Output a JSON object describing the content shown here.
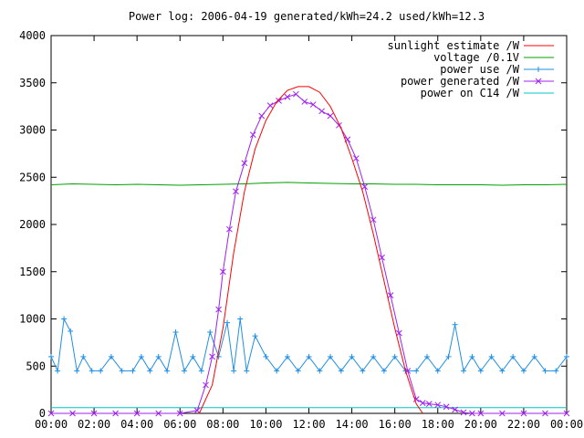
{
  "chart_data": {
    "type": "line",
    "title": "Power log: 2006-04-19 generated/kWh=24.2 used/kWh=12.3",
    "xlabel": "",
    "ylabel": "",
    "xlim": [
      0,
      24
    ],
    "ylim": [
      0,
      4000
    ],
    "x_ticks": [
      "00:00",
      "02:00",
      "04:00",
      "06:00",
      "08:00",
      "10:00",
      "12:00",
      "14:00",
      "16:00",
      "18:00",
      "20:00",
      "22:00",
      "00:00"
    ],
    "y_ticks": [
      "0",
      "500",
      "1000",
      "1500",
      "2000",
      "2500",
      "3000",
      "3500",
      "4000"
    ],
    "grid": false,
    "legend_position": "top-right",
    "series": [
      {
        "name": "sunlight estimate /W",
        "color": "#ff0000",
        "marker": "none",
        "x": [
          6.9,
          7.5,
          8,
          8.5,
          9,
          9.5,
          10,
          10.5,
          11,
          11.5,
          12,
          12.5,
          13,
          13.5,
          14,
          14.5,
          15,
          15.5,
          16,
          16.5,
          17,
          17.3
        ],
        "y": [
          0,
          300,
          900,
          1700,
          2350,
          2800,
          3100,
          3300,
          3420,
          3460,
          3460,
          3400,
          3250,
          3020,
          2700,
          2350,
          1900,
          1400,
          900,
          450,
          100,
          0
        ]
      },
      {
        "name": "voltage /0.1V",
        "color": "#00a000",
        "marker": "none",
        "x": [
          0,
          1,
          2,
          3,
          4,
          5,
          6,
          7,
          8,
          9,
          10,
          11,
          12,
          13,
          14,
          15,
          16,
          17,
          18,
          19,
          20,
          21,
          22,
          23,
          24
        ],
        "y": [
          2420,
          2430,
          2425,
          2420,
          2425,
          2420,
          2415,
          2420,
          2425,
          2430,
          2440,
          2445,
          2440,
          2435,
          2430,
          2430,
          2425,
          2425,
          2420,
          2420,
          2420,
          2415,
          2420,
          2420,
          2425
        ]
      },
      {
        "name": "power use /W",
        "color": "#1e8fe6",
        "marker": "plus",
        "x": [
          0,
          0.3,
          0.6,
          0.9,
          1.2,
          1.5,
          1.9,
          2.3,
          2.8,
          3.3,
          3.8,
          4.2,
          4.6,
          5.0,
          5.4,
          5.8,
          6.2,
          6.6,
          7.0,
          7.4,
          7.8,
          8.2,
          8.5,
          8.8,
          9.1,
          9.5,
          10.0,
          10.5,
          11.0,
          11.5,
          12.0,
          12.5,
          13.0,
          13.5,
          14.0,
          14.5,
          15.0,
          15.5,
          16.0,
          16.5,
          17.0,
          17.5,
          18.0,
          18.5,
          18.8,
          19.2,
          19.6,
          20.0,
          20.5,
          21.0,
          21.5,
          22.0,
          22.5,
          23.0,
          23.5,
          24.0
        ],
        "y": [
          600,
          450,
          1000,
          870,
          450,
          600,
          450,
          450,
          600,
          450,
          450,
          600,
          450,
          600,
          450,
          860,
          450,
          600,
          450,
          860,
          600,
          960,
          450,
          1000,
          450,
          820,
          600,
          450,
          600,
          450,
          600,
          450,
          600,
          450,
          600,
          450,
          600,
          450,
          600,
          450,
          450,
          600,
          450,
          600,
          940,
          450,
          600,
          450,
          600,
          450,
          600,
          450,
          600,
          450,
          450,
          600
        ]
      },
      {
        "name": "power generated /W",
        "color": "#a020f0",
        "marker": "cross",
        "x": [
          0,
          1,
          2,
          3,
          4,
          5,
          6,
          6.8,
          7.2,
          7.5,
          7.8,
          8.0,
          8.3,
          8.6,
          9.0,
          9.4,
          9.8,
          10.2,
          10.6,
          11.0,
          11.4,
          11.8,
          12.2,
          12.6,
          13.0,
          13.4,
          13.8,
          14.2,
          14.6,
          15.0,
          15.4,
          15.8,
          16.2,
          16.6,
          17.0,
          17.3,
          17.6,
          18.0,
          18.4,
          18.8,
          19.2,
          19.6,
          20,
          21,
          22,
          23,
          24
        ],
        "y": [
          0,
          0,
          0,
          0,
          0,
          0,
          0,
          30,
          300,
          600,
          1100,
          1500,
          1950,
          2350,
          2650,
          2950,
          3150,
          3260,
          3310,
          3350,
          3380,
          3300,
          3270,
          3200,
          3150,
          3050,
          2900,
          2700,
          2400,
          2050,
          1650,
          1250,
          850,
          450,
          150,
          110,
          100,
          90,
          70,
          40,
          10,
          0,
          0,
          0,
          0,
          0,
          0
        ]
      },
      {
        "name": "power on C14 /W",
        "color": "#00c8c8",
        "marker": "none",
        "x": [
          0,
          24
        ],
        "y": [
          60,
          60
        ]
      }
    ]
  }
}
